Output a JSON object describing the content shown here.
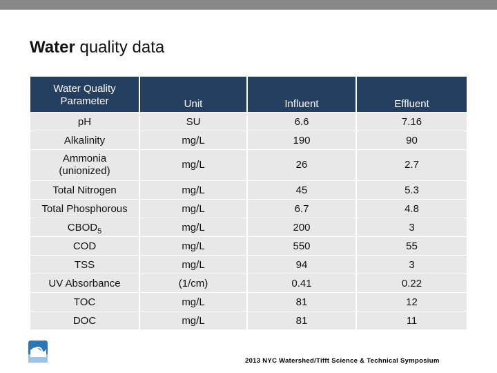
{
  "slide": {
    "title_bold": "Water",
    "title_rest": " quality data",
    "footer": "2013 NYC Watershed/Tifft Science & Technical Symposium",
    "header_color": "#243f60",
    "row_color": "#e8e8e8"
  },
  "table": {
    "headers": {
      "parameter_line1": "Water Quality",
      "parameter_line2": "Parameter",
      "unit": "Unit",
      "influent": "Influent",
      "effluent": "Effluent"
    },
    "rows": [
      {
        "parameter": "pH",
        "unit": "SU",
        "influent": "6.6",
        "effluent": "7.16"
      },
      {
        "parameter": "Alkalinity",
        "unit": "mg/L",
        "influent": "190",
        "effluent": "90"
      },
      {
        "parameter": "Ammonia",
        "parameter_line2": "(unionized)",
        "unit": "mg/L",
        "influent": "26",
        "effluent": "2.7"
      },
      {
        "parameter": "Total Nitrogen",
        "unit": "mg/L",
        "influent": "45",
        "effluent": "5.3"
      },
      {
        "parameter": "Total Phosphorous",
        "unit": "mg/L",
        "influent": "6.7",
        "effluent": "4.8"
      },
      {
        "parameter": "CBOD",
        "parameter_sub": "5",
        "unit": "mg/L",
        "influent": "200",
        "effluent": "3"
      },
      {
        "parameter": "COD",
        "unit": "mg/L",
        "influent": "550",
        "effluent": "55"
      },
      {
        "parameter": "TSS",
        "unit": "mg/L",
        "influent": "94",
        "effluent": "3"
      },
      {
        "parameter": "UV Absorbance",
        "unit": "(1/cm)",
        "influent": "0.41",
        "effluent": "0.22"
      },
      {
        "parameter": "TOC",
        "unit": "mg/L",
        "influent": "81",
        "effluent": "12"
      },
      {
        "parameter": "DOC",
        "unit": "mg/L",
        "influent": "81",
        "effluent": "11"
      }
    ]
  }
}
